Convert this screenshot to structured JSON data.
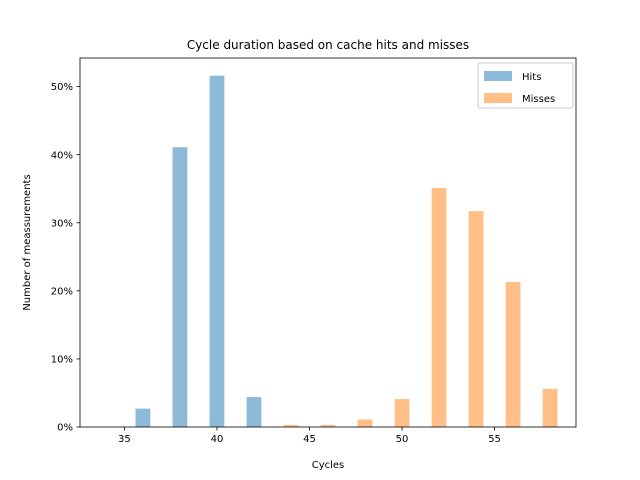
{
  "chart_data": {
    "type": "bar",
    "title": "Cycle duration based on cache hits and misses",
    "xlabel": "Cycles",
    "ylabel": "Number of meassurements",
    "xlim": [
      32.6,
      59.4
    ],
    "ylim": [
      0,
      0.542
    ],
    "xticks": [
      35,
      40,
      45,
      50,
      55
    ],
    "yticks": [
      0,
      0.1,
      0.2,
      0.3,
      0.4,
      0.5
    ],
    "ytick_labels": [
      "0%",
      "10%",
      "20%",
      "30%",
      "40%",
      "50%"
    ],
    "bar_width": 0.8,
    "grid": false,
    "legend_position": "top-right",
    "series": [
      {
        "name": "Hits",
        "color": "#8ebad9",
        "x": [
          36,
          38,
          40,
          42
        ],
        "values": [
          0.027,
          0.411,
          0.516,
          0.044
        ]
      },
      {
        "name": "Misses",
        "color": "#ffbf86",
        "x": [
          44,
          46,
          48,
          50,
          52,
          54,
          56,
          58
        ],
        "values": [
          0.003,
          0.003,
          0.011,
          0.041,
          0.351,
          0.317,
          0.213,
          0.056
        ]
      }
    ]
  }
}
